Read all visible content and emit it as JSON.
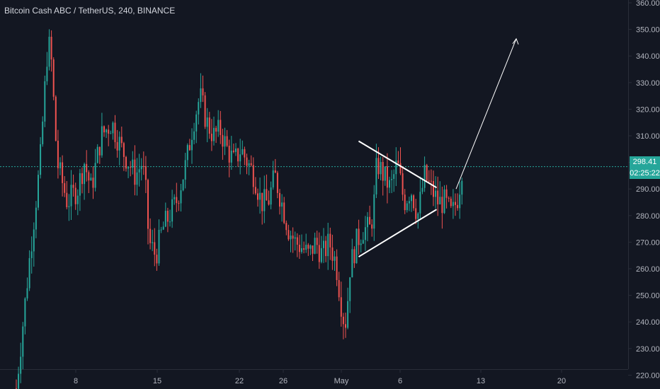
{
  "header": {
    "title": "Bitcoin Cash ABC / TetherUS, 240, BINANCE"
  },
  "colors": {
    "background": "#131722",
    "up": "#26a69a",
    "down": "#ef5350",
    "axis_text": "#b2b5be",
    "drawing": "#ffffff"
  },
  "price_axis": {
    "ticks": [
      "360.00",
      "350.00",
      "340.00",
      "330.00",
      "320.00",
      "310.00",
      "300.00",
      "290.00",
      "280.00",
      "270.00",
      "260.00",
      "250.00",
      "240.00",
      "230.00",
      "220.00"
    ]
  },
  "time_axis": {
    "ticks": [
      "8",
      "15",
      "22",
      "26",
      "May",
      "6",
      "13",
      "20"
    ]
  },
  "last_price": {
    "value": "298.41",
    "countdown": "02:25:22"
  },
  "chart_data": {
    "type": "candlestick",
    "title": "Bitcoin Cash ABC / TetherUS, 240, BINANCE",
    "ylim": [
      218,
      363
    ],
    "y_ticks": [
      220,
      230,
      240,
      250,
      260,
      270,
      280,
      290,
      300,
      310,
      320,
      330,
      340,
      350,
      360
    ],
    "x_ticks": [
      "8",
      "15",
      "22",
      "26",
      "May",
      "6",
      "13",
      "20"
    ],
    "last_price": 298.41,
    "price_path": [
      [
        0,
        215
      ],
      [
        4,
        265
      ],
      [
        7,
        300
      ],
      [
        9,
        340
      ],
      [
        10,
        345
      ],
      [
        12,
        300
      ],
      [
        15,
        285
      ],
      [
        18,
        290
      ],
      [
        20,
        300
      ],
      [
        22,
        290
      ],
      [
        25,
        310
      ],
      [
        28,
        315
      ],
      [
        31,
        305
      ],
      [
        33,
        300
      ],
      [
        35,
        295
      ],
      [
        37,
        300
      ],
      [
        38,
        290
      ],
      [
        39,
        270
      ],
      [
        41,
        265
      ],
      [
        43,
        275
      ],
      [
        45,
        280
      ],
      [
        47,
        285
      ],
      [
        50,
        300
      ],
      [
        52,
        315
      ],
      [
        54,
        325
      ],
      [
        56,
        315
      ],
      [
        58,
        310
      ],
      [
        60,
        312
      ],
      [
        62,
        305
      ],
      [
        64,
        300
      ],
      [
        66,
        305
      ],
      [
        68,
        300
      ],
      [
        70,
        295
      ],
      [
        72,
        285
      ],
      [
        74,
        285
      ],
      [
        75,
        290
      ],
      [
        76,
        295
      ],
      [
        78,
        285
      ],
      [
        80,
        275
      ],
      [
        82,
        270
      ],
      [
        84,
        268
      ],
      [
        86,
        265
      ],
      [
        88,
        270
      ],
      [
        90,
        265
      ],
      [
        92,
        270
      ],
      [
        94,
        262
      ],
      [
        95,
        252
      ],
      [
        96,
        242
      ],
      [
        97,
        240
      ],
      [
        98,
        260
      ],
      [
        99,
        265
      ],
      [
        100,
        270
      ],
      [
        102,
        275
      ],
      [
        104,
        275
      ],
      [
        105,
        282
      ],
      [
        106,
        300
      ],
      [
        108,
        295
      ],
      [
        110,
        290
      ],
      [
        112,
        300
      ],
      [
        114,
        285
      ],
      [
        116,
        290
      ],
      [
        118,
        280
      ],
      [
        120,
        295
      ],
      [
        122,
        290
      ],
      [
        124,
        285
      ],
      [
        126,
        285
      ],
      [
        128,
        280
      ],
      [
        130,
        288
      ],
      [
        131,
        298
      ]
    ],
    "trendline_upper": [
      [
        1.5,
        308
      ],
      [
        5.8,
        293
      ]
    ],
    "trendline_lower": [
      [
        1.5,
        264.5
      ],
      [
        5.8,
        281
      ]
    ],
    "projection_arrow": [
      [
        5.4,
        290
      ],
      [
        6.3,
        346
      ]
    ]
  }
}
